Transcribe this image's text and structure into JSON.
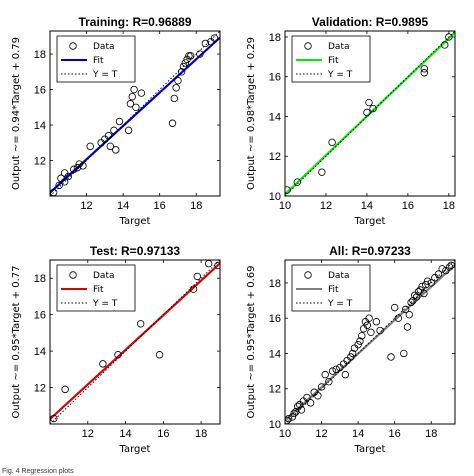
{
  "figure": {
    "caption": "Fig. 4  Regression plots"
  },
  "chart_data": [
    {
      "type": "scatter",
      "title": "Training: R=0.96889",
      "xlabel": "Target",
      "ylabel": "Output ~= 0.94*Target + 0.79",
      "xlim": [
        10,
        19.3
      ],
      "ylim": [
        10,
        19.3
      ],
      "xticks": [
        12,
        14,
        16,
        18
      ],
      "yticks": [
        12,
        14,
        16,
        18
      ],
      "fit": {
        "slope": 0.94,
        "intercept": 0.79,
        "color": "#0000cc"
      },
      "legend": [
        "Data",
        "Fit",
        "Y = T"
      ],
      "legend_placement": "top-left",
      "grid": false,
      "points": [
        [
          10.2,
          10.2
        ],
        [
          10.5,
          10.6
        ],
        [
          10.6,
          11.0
        ],
        [
          10.8,
          10.8
        ],
        [
          10.8,
          11.3
        ],
        [
          11.0,
          11.1
        ],
        [
          11.3,
          11.5
        ],
        [
          11.5,
          11.6
        ],
        [
          11.6,
          11.8
        ],
        [
          11.8,
          11.7
        ],
        [
          12.2,
          12.8
        ],
        [
          12.8,
          13.0
        ],
        [
          13.0,
          13.2
        ],
        [
          13.2,
          13.4
        ],
        [
          13.3,
          12.8
        ],
        [
          13.5,
          13.7
        ],
        [
          13.6,
          12.6
        ],
        [
          13.8,
          14.2
        ],
        [
          14.3,
          13.7
        ],
        [
          14.4,
          15.2
        ],
        [
          14.5,
          15.6
        ],
        [
          14.6,
          16.0
        ],
        [
          14.7,
          15.0
        ],
        [
          15.0,
          15.8
        ],
        [
          16.7,
          14.1
        ],
        [
          16.8,
          15.5
        ],
        [
          16.9,
          16.1
        ],
        [
          17.0,
          16.5
        ],
        [
          17.2,
          17.0
        ],
        [
          17.3,
          17.3
        ],
        [
          17.4,
          17.5
        ],
        [
          17.5,
          17.7
        ],
        [
          17.6,
          17.9
        ],
        [
          17.7,
          17.9
        ],
        [
          18.2,
          18.0
        ],
        [
          18.5,
          18.6
        ],
        [
          18.8,
          18.7
        ],
        [
          19.0,
          18.9
        ]
      ]
    },
    {
      "type": "scatter",
      "title": "Validation: R=0.9895",
      "xlabel": "Target",
      "ylabel": "Output ~= 0.98*Target + 0.29",
      "xlim": [
        10,
        18.3
      ],
      "ylim": [
        10,
        18.3
      ],
      "xticks": [
        10,
        12,
        14,
        16,
        18
      ],
      "yticks": [
        10,
        12,
        14,
        16,
        18
      ],
      "fit": {
        "slope": 0.98,
        "intercept": 0.29,
        "color": "#00ee00"
      },
      "legend": [
        "Data",
        "Fit",
        "Y = T"
      ],
      "legend_placement": "top-left",
      "grid": false,
      "points": [
        [
          10.1,
          10.3
        ],
        [
          10.6,
          10.7
        ],
        [
          11.8,
          11.2
        ],
        [
          12.3,
          12.7
        ],
        [
          14.0,
          14.2
        ],
        [
          14.1,
          14.7
        ],
        [
          14.3,
          14.4
        ],
        [
          16.8,
          16.2
        ],
        [
          16.8,
          16.4
        ],
        [
          17.8,
          17.6
        ],
        [
          18.0,
          18.0
        ]
      ]
    },
    {
      "type": "scatter",
      "title": "Test: R=0.97133",
      "xlabel": "Target",
      "ylabel": "Output ~= 0.95*Target + 0.77",
      "xlim": [
        10,
        19
      ],
      "ylim": [
        10,
        19
      ],
      "xticks": [
        12,
        14,
        16,
        18
      ],
      "yticks": [
        12,
        14,
        16,
        18
      ],
      "fit": {
        "slope": 0.95,
        "intercept": 0.77,
        "color": "#dd0000"
      },
      "legend": [
        "Data",
        "Fit",
        "Y = T"
      ],
      "legend_placement": "top-left",
      "grid": false,
      "points": [
        [
          10.2,
          10.3
        ],
        [
          10.8,
          11.9
        ],
        [
          12.8,
          13.3
        ],
        [
          13.6,
          13.8
        ],
        [
          14.8,
          15.5
        ],
        [
          15.8,
          13.8
        ],
        [
          17.6,
          17.4
        ],
        [
          17.8,
          18.1
        ],
        [
          18.4,
          18.8
        ],
        [
          18.9,
          18.7
        ]
      ]
    },
    {
      "type": "scatter",
      "title": "All: R=0.97233",
      "xlabel": "Target",
      "ylabel": "Output ~= 0.95*Target + 0.69",
      "xlim": [
        10,
        19.3
      ],
      "ylim": [
        10,
        19.3
      ],
      "xticks": [
        10,
        12,
        14,
        16,
        18
      ],
      "yticks": [
        10,
        12,
        14,
        16,
        18
      ],
      "fit": {
        "slope": 0.95,
        "intercept": 0.69,
        "color": "#808080"
      },
      "legend": [
        "Data",
        "Fit",
        "Y = T"
      ],
      "legend_placement": "top-left",
      "grid": false,
      "points": [
        [
          10.1,
          10.2
        ],
        [
          10.2,
          10.3
        ],
        [
          10.4,
          10.4
        ],
        [
          10.5,
          10.6
        ],
        [
          10.6,
          10.7
        ],
        [
          10.7,
          11.0
        ],
        [
          10.8,
          11.1
        ],
        [
          10.9,
          10.8
        ],
        [
          11.0,
          11.3
        ],
        [
          11.2,
          11.5
        ],
        [
          11.4,
          11.2
        ],
        [
          11.6,
          11.8
        ],
        [
          11.8,
          11.6
        ],
        [
          12.0,
          12.1
        ],
        [
          12.2,
          12.8
        ],
        [
          12.4,
          12.4
        ],
        [
          12.6,
          13.0
        ],
        [
          12.8,
          13.1
        ],
        [
          13.0,
          13.2
        ],
        [
          13.2,
          13.4
        ],
        [
          13.3,
          12.8
        ],
        [
          13.4,
          13.6
        ],
        [
          13.6,
          13.8
        ],
        [
          13.7,
          14.0
        ],
        [
          13.8,
          14.3
        ],
        [
          14.0,
          14.5
        ],
        [
          14.1,
          14.7
        ],
        [
          14.2,
          15.0
        ],
        [
          14.3,
          15.4
        ],
        [
          14.4,
          15.8
        ],
        [
          14.5,
          15.6
        ],
        [
          14.6,
          16.0
        ],
        [
          14.7,
          15.2
        ],
        [
          15.0,
          15.8
        ],
        [
          15.2,
          15.3
        ],
        [
          15.8,
          13.8
        ],
        [
          16.0,
          16.6
        ],
        [
          16.2,
          16.0
        ],
        [
          16.5,
          14.0
        ],
        [
          16.6,
          16.5
        ],
        [
          16.7,
          15.5
        ],
        [
          16.8,
          16.2
        ],
        [
          16.9,
          16.9
        ],
        [
          17.0,
          17.0
        ],
        [
          17.1,
          17.3
        ],
        [
          17.2,
          17.2
        ],
        [
          17.3,
          17.5
        ],
        [
          17.4,
          17.6
        ],
        [
          17.5,
          17.8
        ],
        [
          17.6,
          17.4
        ],
        [
          17.7,
          17.9
        ],
        [
          17.8,
          18.1
        ],
        [
          18.0,
          18.0
        ],
        [
          18.2,
          18.3
        ],
        [
          18.4,
          18.5
        ],
        [
          18.6,
          18.8
        ],
        [
          18.8,
          18.7
        ],
        [
          19.0,
          18.9
        ],
        [
          19.1,
          19.0
        ]
      ]
    }
  ]
}
